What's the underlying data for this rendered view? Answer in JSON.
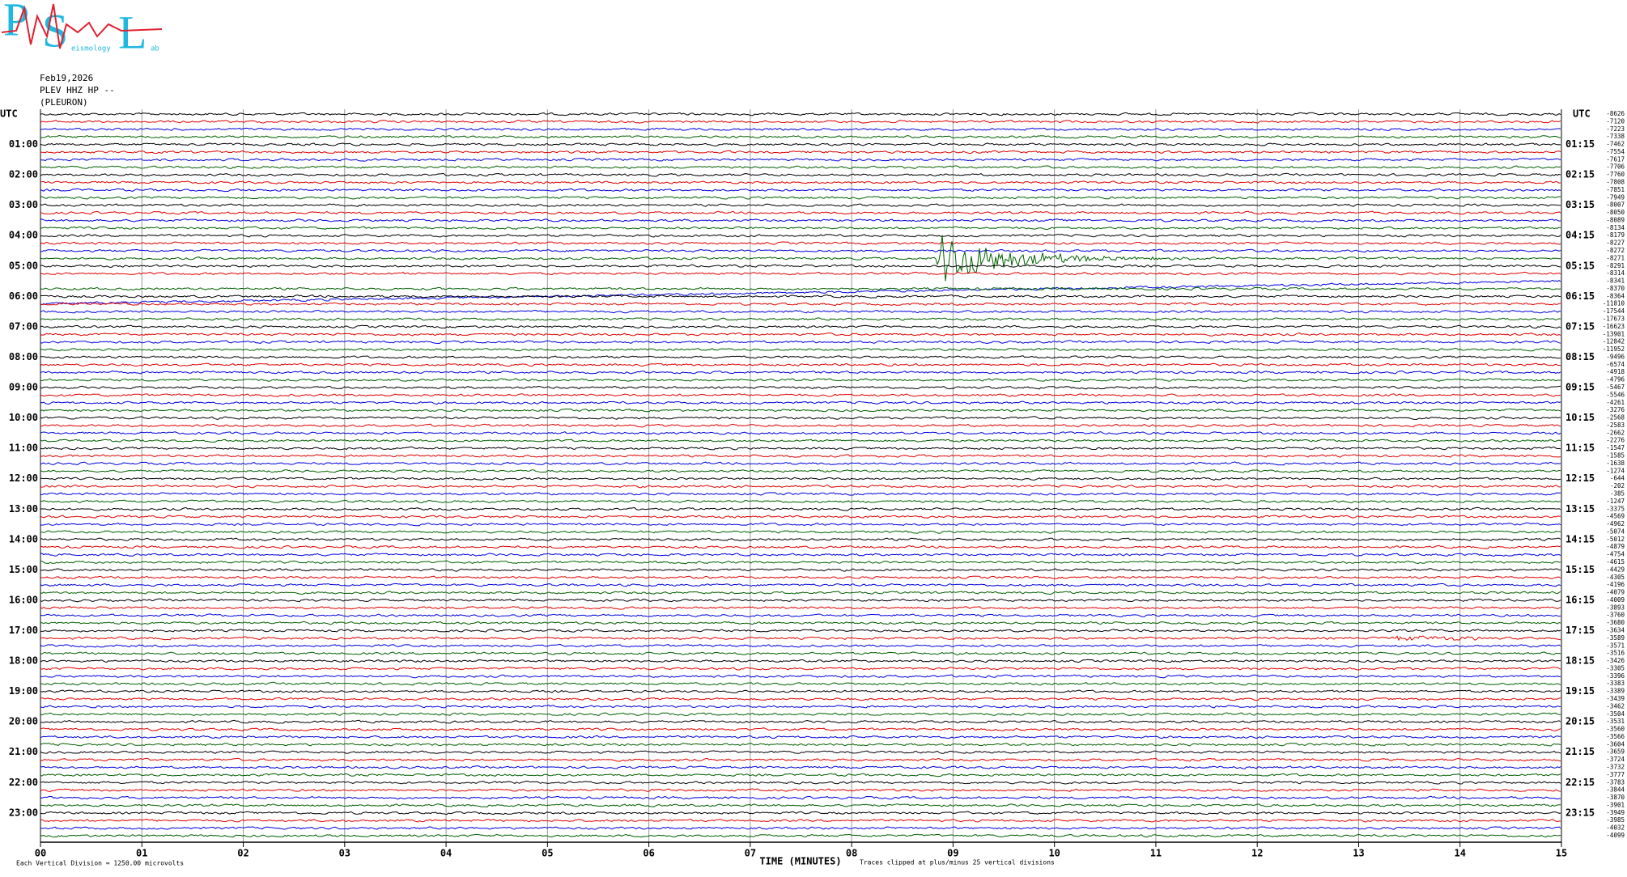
{
  "logo": {
    "p": "P",
    "s": "S",
    "l": "L",
    "word1": "eismology",
    "word2": "ab"
  },
  "header": {
    "date": "Feb19,2026",
    "station": "PLEV HHZ HP --",
    "site": "(PLEURON)"
  },
  "left_utc": "UTC",
  "right_utc": "UTC",
  "left_labels": [
    "01:00",
    "02:00",
    "03:00",
    "04:00",
    "05:00",
    "06:00",
    "07:00",
    "08:00",
    "09:00",
    "10:00",
    "11:00",
    "12:00",
    "13:00",
    "14:00",
    "15:00",
    "16:00",
    "17:00",
    "18:00",
    "19:00",
    "20:00",
    "21:00",
    "22:00",
    "23:00"
  ],
  "right_labels": [
    "01:15",
    "02:15",
    "03:15",
    "04:15",
    "05:15",
    "06:15",
    "07:15",
    "08:15",
    "09:15",
    "10:15",
    "11:15",
    "12:15",
    "13:15",
    "14:15",
    "15:15",
    "16:15",
    "17:15",
    "18:15",
    "19:15",
    "20:15",
    "21:15",
    "22:15",
    "23:15"
  ],
  "offsets": [
    -8626,
    -7120,
    -7223,
    -7338,
    -7462,
    -7554,
    -7617,
    -7706,
    -7760,
    -7808,
    -7851,
    -7949,
    -8007,
    -8050,
    -8089,
    -8134,
    -8179,
    -8227,
    -8272,
    -8271,
    -8291,
    -8314,
    -8341,
    -8370,
    -8364,
    -11810,
    -17544,
    -17673,
    -16623,
    -13901,
    -12842,
    -11952,
    -9496,
    -6574,
    -4918,
    -4796,
    -5467,
    -5546,
    -4261,
    -3276,
    -2568,
    -2583,
    -2662,
    -2276,
    -1547,
    -1585,
    -1638,
    -1274,
    -644,
    -202,
    -385,
    -1247,
    -3375,
    -4569,
    -4962,
    -5074,
    -5012,
    -4879,
    -4754,
    -4615,
    -4429,
    -4305,
    -4196,
    -4079,
    -4009,
    -3893,
    -3760,
    -3680,
    -3634,
    -3589,
    -3571,
    -3516,
    -3426,
    -3305,
    -3396,
    -3383,
    -3389,
    -3439,
    -3462,
    -3504,
    -3531,
    -3560,
    -3566,
    -3604,
    -3659,
    -3724,
    -3732,
    -3777,
    -3783,
    -3844,
    -3870,
    -3901,
    -3949,
    -3985,
    -4032,
    -4099
  ],
  "x_axis": {
    "ticks": [
      "00",
      "01",
      "02",
      "03",
      "04",
      "05",
      "06",
      "07",
      "08",
      "09",
      "10",
      "11",
      "12",
      "13",
      "14",
      "15"
    ],
    "label": "TIME (MINUTES)"
  },
  "footer": {
    "division": "Each Vertical Division = 1250.00 microvolts",
    "clipping": "Traces clipped at plus/minus 25 vertical divisions"
  },
  "trace_colors": [
    "#000000",
    "#e00000",
    "#0000e0",
    "#006000"
  ]
}
